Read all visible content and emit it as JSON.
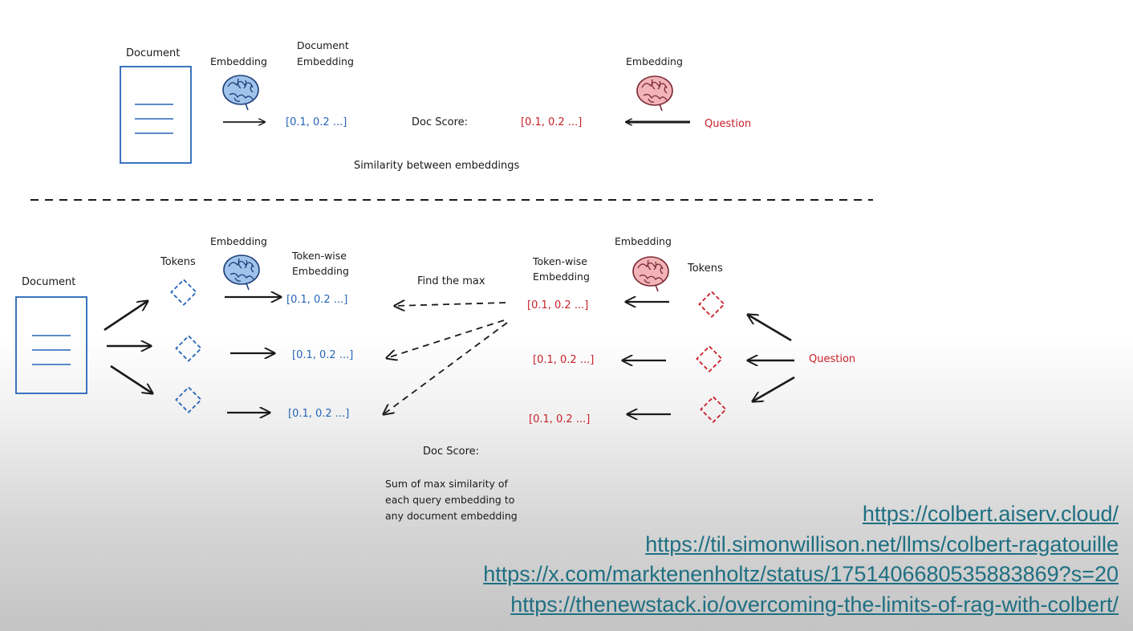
{
  "top": {
    "document_label": "Document",
    "embedding_left_label": "Embedding",
    "doc_embedding_label": [
      "Document",
      "Embedding"
    ],
    "doc_vector": "[0.1, 0.2 ...]",
    "doc_score_label": "Doc Score:",
    "question_vector": "[0.1, 0.2 ...]",
    "embedding_right_label": "Embedding",
    "question_label": "Question",
    "similarity_caption": "Similarity between embeddings"
  },
  "bottom": {
    "document_label": "Document",
    "tokens_left_label": "Tokens",
    "embedding_left_label": "Embedding",
    "tokenwise_left_label": [
      "Token-wise",
      "Embedding"
    ],
    "find_max_label": "Find the max",
    "tokenwise_right_label": [
      "Token-wise",
      "Embedding"
    ],
    "embedding_right_label": "Embedding",
    "tokens_right_label": "Tokens",
    "question_label": "Question",
    "doc_vectors": [
      "[0.1, 0.2 ...]",
      "[0.1, 0.2 ...]",
      "[0.1, 0.2 ...]"
    ],
    "query_vectors": [
      "[0.1, 0.2 ...]",
      "[0.1, 0.2 ...]",
      "[0.1, 0.2 ...]"
    ],
    "doc_score_label": "Doc Score:",
    "doc_score_description": [
      "Sum of max similarity of",
      "each query embedding to",
      "any document embedding"
    ]
  },
  "links": [
    "https://colbert.aiserv.cloud/",
    "https://til.simonwillison.net/llms/colbert-ragatouille",
    "https://x.com/marktenenholtz/status/1751406680535883869?s=20",
    "https://thenewstack.io/overcoming-the-limits-of-rag-with-colbert/"
  ],
  "colors": {
    "document": "#2565b8",
    "query": "#c8202a",
    "link": "#1f6f82",
    "ink": "#1a1a1a"
  },
  "icons": [
    "document-icon",
    "brain-icon",
    "token-diamond-icon",
    "arrow-icon"
  ]
}
